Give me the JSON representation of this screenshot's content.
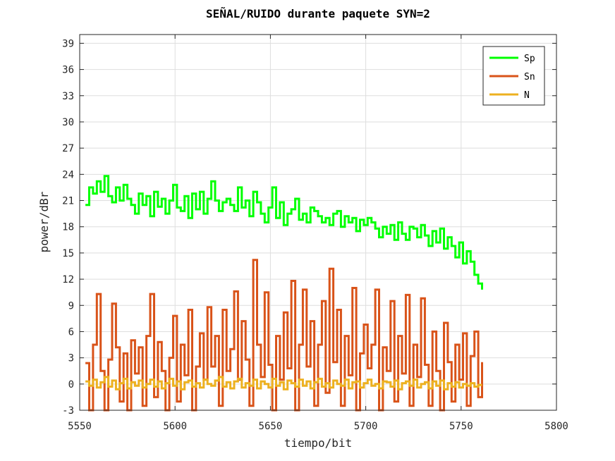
{
  "chart_data": {
    "type": "line",
    "title": "SEÑAL/RUIDO durante paquete SYN=2",
    "xlabel": "tiempo/bit",
    "ylabel": "power/dBr",
    "xlim": [
      5550,
      5800
    ],
    "ylim": [
      -3,
      40
    ],
    "x_ticks": [
      5550,
      5600,
      5650,
      5700,
      5750,
      5800
    ],
    "y_ticks": [
      -3,
      0,
      3,
      6,
      9,
      12,
      15,
      18,
      21,
      24,
      27,
      30,
      33,
      36,
      39
    ],
    "grid": true,
    "legend_position": "top-right",
    "series": [
      {
        "name": "Sp",
        "color": "#00ff00",
        "x": [
          5553,
          5555,
          5557,
          5559,
          5561,
          5563,
          5565,
          5567,
          5569,
          5571,
          5573,
          5575,
          5577,
          5579,
          5581,
          5583,
          5585,
          5587,
          5589,
          5591,
          5593,
          5595,
          5597,
          5599,
          5601,
          5603,
          5605,
          5607,
          5609,
          5611,
          5613,
          5615,
          5617,
          5619,
          5621,
          5623,
          5625,
          5627,
          5629,
          5631,
          5633,
          5635,
          5637,
          5639,
          5641,
          5643,
          5645,
          5647,
          5649,
          5651,
          5653,
          5655,
          5657,
          5659,
          5661,
          5663,
          5665,
          5667,
          5669,
          5671,
          5673,
          5675,
          5677,
          5679,
          5681,
          5683,
          5685,
          5687,
          5689,
          5691,
          5693,
          5695,
          5697,
          5699,
          5701,
          5703,
          5705,
          5707,
          5709,
          5711,
          5713,
          5715,
          5717,
          5719,
          5721,
          5723,
          5725,
          5727,
          5729,
          5731,
          5733,
          5735,
          5737,
          5739,
          5741,
          5743,
          5745,
          5747,
          5749,
          5751,
          5753,
          5755,
          5757,
          5759,
          5761
        ],
        "y": [
          20.5,
          22.5,
          21.8,
          23.2,
          22.0,
          23.8,
          21.5,
          20.8,
          22.5,
          21.0,
          22.8,
          21.2,
          20.5,
          19.5,
          21.8,
          20.5,
          21.5,
          19.2,
          22.0,
          20.3,
          21.2,
          19.5,
          21.0,
          22.8,
          20.2,
          19.8,
          21.5,
          19.0,
          21.8,
          20.0,
          22.0,
          19.5,
          21.2,
          23.2,
          21.0,
          19.8,
          20.8,
          21.2,
          20.5,
          19.8,
          22.5,
          20.2,
          21.0,
          19.2,
          22.0,
          20.8,
          19.5,
          18.5,
          20.2,
          22.5,
          19.0,
          20.8,
          18.2,
          19.5,
          20.0,
          21.2,
          18.8,
          19.5,
          18.5,
          20.2,
          19.8,
          19.2,
          18.5,
          19.0,
          18.2,
          19.5,
          19.8,
          18.0,
          19.2,
          18.5,
          19.0,
          17.5,
          18.8,
          18.2,
          19.0,
          18.5,
          17.8,
          16.8,
          18.0,
          17.2,
          18.2,
          16.5,
          18.5,
          17.2,
          16.5,
          18.0,
          17.8,
          16.8,
          18.2,
          17.0,
          15.8,
          17.5,
          16.2,
          17.8,
          15.5,
          16.8,
          15.8,
          14.5,
          16.2,
          13.8,
          15.2,
          14.0,
          12.5,
          11.5,
          10.8
        ]
      },
      {
        "name": "Sn",
        "color": "#d95319",
        "x": [
          5553,
          5555,
          5557,
          5559,
          5561,
          5563,
          5565,
          5567,
          5569,
          5571,
          5573,
          5575,
          5577,
          5579,
          5581,
          5583,
          5585,
          5587,
          5589,
          5591,
          5593,
          5595,
          5597,
          5599,
          5601,
          5603,
          5605,
          5607,
          5609,
          5611,
          5613,
          5615,
          5617,
          5619,
          5621,
          5623,
          5625,
          5627,
          5629,
          5631,
          5633,
          5635,
          5637,
          5639,
          5641,
          5643,
          5645,
          5647,
          5649,
          5651,
          5653,
          5655,
          5657,
          5659,
          5661,
          5663,
          5665,
          5667,
          5669,
          5671,
          5673,
          5675,
          5677,
          5679,
          5681,
          5683,
          5685,
          5687,
          5689,
          5691,
          5693,
          5695,
          5697,
          5699,
          5701,
          5703,
          5705,
          5707,
          5709,
          5711,
          5713,
          5715,
          5717,
          5719,
          5721,
          5723,
          5725,
          5727,
          5729,
          5731,
          5733,
          5735,
          5737,
          5739,
          5741,
          5743,
          5745,
          5747,
          5749,
          5751,
          5753,
          5755,
          5757,
          5759,
          5761
        ],
        "y": [
          2.4,
          -3.0,
          4.5,
          10.3,
          1.5,
          -3.0,
          2.8,
          9.2,
          4.2,
          -2.0,
          3.5,
          -3.0,
          5.0,
          1.2,
          4.2,
          -2.5,
          5.5,
          10.3,
          -1.5,
          4.8,
          1.5,
          -3.0,
          3.0,
          7.8,
          -2.0,
          4.5,
          1.0,
          8.5,
          -3.0,
          2.0,
          5.8,
          0.5,
          8.8,
          2.0,
          5.5,
          -2.5,
          8.5,
          1.5,
          4.0,
          10.6,
          0.5,
          7.2,
          2.8,
          -2.5,
          14.2,
          4.5,
          0.8,
          10.5,
          2.2,
          -3.0,
          5.5,
          0.5,
          8.2,
          1.8,
          11.8,
          -3.0,
          4.5,
          10.8,
          2.0,
          7.2,
          -2.5,
          4.5,
          9.5,
          -1.0,
          13.2,
          2.5,
          8.5,
          -2.5,
          5.5,
          1.0,
          11.0,
          -3.0,
          3.5,
          6.8,
          1.8,
          4.5,
          10.8,
          -3.0,
          4.2,
          1.5,
          9.5,
          -2.0,
          5.5,
          1.2,
          10.2,
          -2.5,
          4.5,
          0.8,
          9.8,
          2.2,
          -2.5,
          6.0,
          1.5,
          -3.0,
          7.0,
          2.5,
          -2.0,
          4.5,
          0.5,
          5.8,
          -2.5,
          3.2,
          6.0,
          -1.5,
          2.5
        ]
      },
      {
        "name": "N",
        "color": "#edb120",
        "x": [
          5553,
          5555,
          5557,
          5559,
          5561,
          5563,
          5565,
          5567,
          5569,
          5571,
          5573,
          5575,
          5577,
          5579,
          5581,
          5583,
          5585,
          5587,
          5589,
          5591,
          5593,
          5595,
          5597,
          5599,
          5601,
          5603,
          5605,
          5607,
          5609,
          5611,
          5613,
          5615,
          5617,
          5619,
          5621,
          5623,
          5625,
          5627,
          5629,
          5631,
          5633,
          5635,
          5637,
          5639,
          5641,
          5643,
          5645,
          5647,
          5649,
          5651,
          5653,
          5655,
          5657,
          5659,
          5661,
          5663,
          5665,
          5667,
          5669,
          5671,
          5673,
          5675,
          5677,
          5679,
          5681,
          5683,
          5685,
          5687,
          5689,
          5691,
          5693,
          5695,
          5697,
          5699,
          5701,
          5703,
          5705,
          5707,
          5709,
          5711,
          5713,
          5715,
          5717,
          5719,
          5721,
          5723,
          5725,
          5727,
          5729,
          5731,
          5733,
          5735,
          5737,
          5739,
          5741,
          5743,
          5745,
          5747,
          5749,
          5751,
          5753,
          5755,
          5757,
          5759,
          5761
        ],
        "y": [
          0.3,
          -0.2,
          0.5,
          -0.4,
          0.2,
          0.8,
          -0.3,
          0.4,
          -0.6,
          0.1,
          0.6,
          -0.5,
          0.2,
          -0.2,
          0.4,
          -0.4,
          0.0,
          0.5,
          -0.3,
          0.3,
          -0.5,
          0.1,
          0.6,
          -0.2,
          0.3,
          -0.6,
          0.2,
          0.4,
          -0.3,
          0.1,
          -0.4,
          0.5,
          0.0,
          -0.2,
          0.4,
          0.8,
          -0.3,
          0.2,
          -0.5,
          0.3,
          0.6,
          -0.4,
          0.1,
          -0.2,
          0.5,
          -0.5,
          0.3,
          0.0,
          -0.4,
          0.6,
          -0.2,
          0.2,
          -0.6,
          0.4,
          0.1,
          -0.3,
          0.5,
          -0.2,
          0.3,
          -0.5,
          0.2,
          0.6,
          -0.3,
          0.1,
          -0.4,
          0.4,
          0.0,
          -0.2,
          0.5,
          -0.5,
          0.2,
          0.3,
          -0.4,
          0.1,
          0.5,
          -0.2,
          0.0,
          -0.5,
          0.3,
          0.2,
          -0.3,
          0.4,
          -0.6,
          0.1,
          0.3,
          -0.2,
          0.5,
          -0.4,
          0.0,
          0.2,
          -0.5,
          0.3,
          -0.2,
          0.4,
          -0.6,
          0.1,
          -0.3,
          0.2,
          -0.4,
          0.0,
          -0.2,
          0.1,
          -0.3,
          -0.1,
          -0.1
        ]
      }
    ]
  }
}
